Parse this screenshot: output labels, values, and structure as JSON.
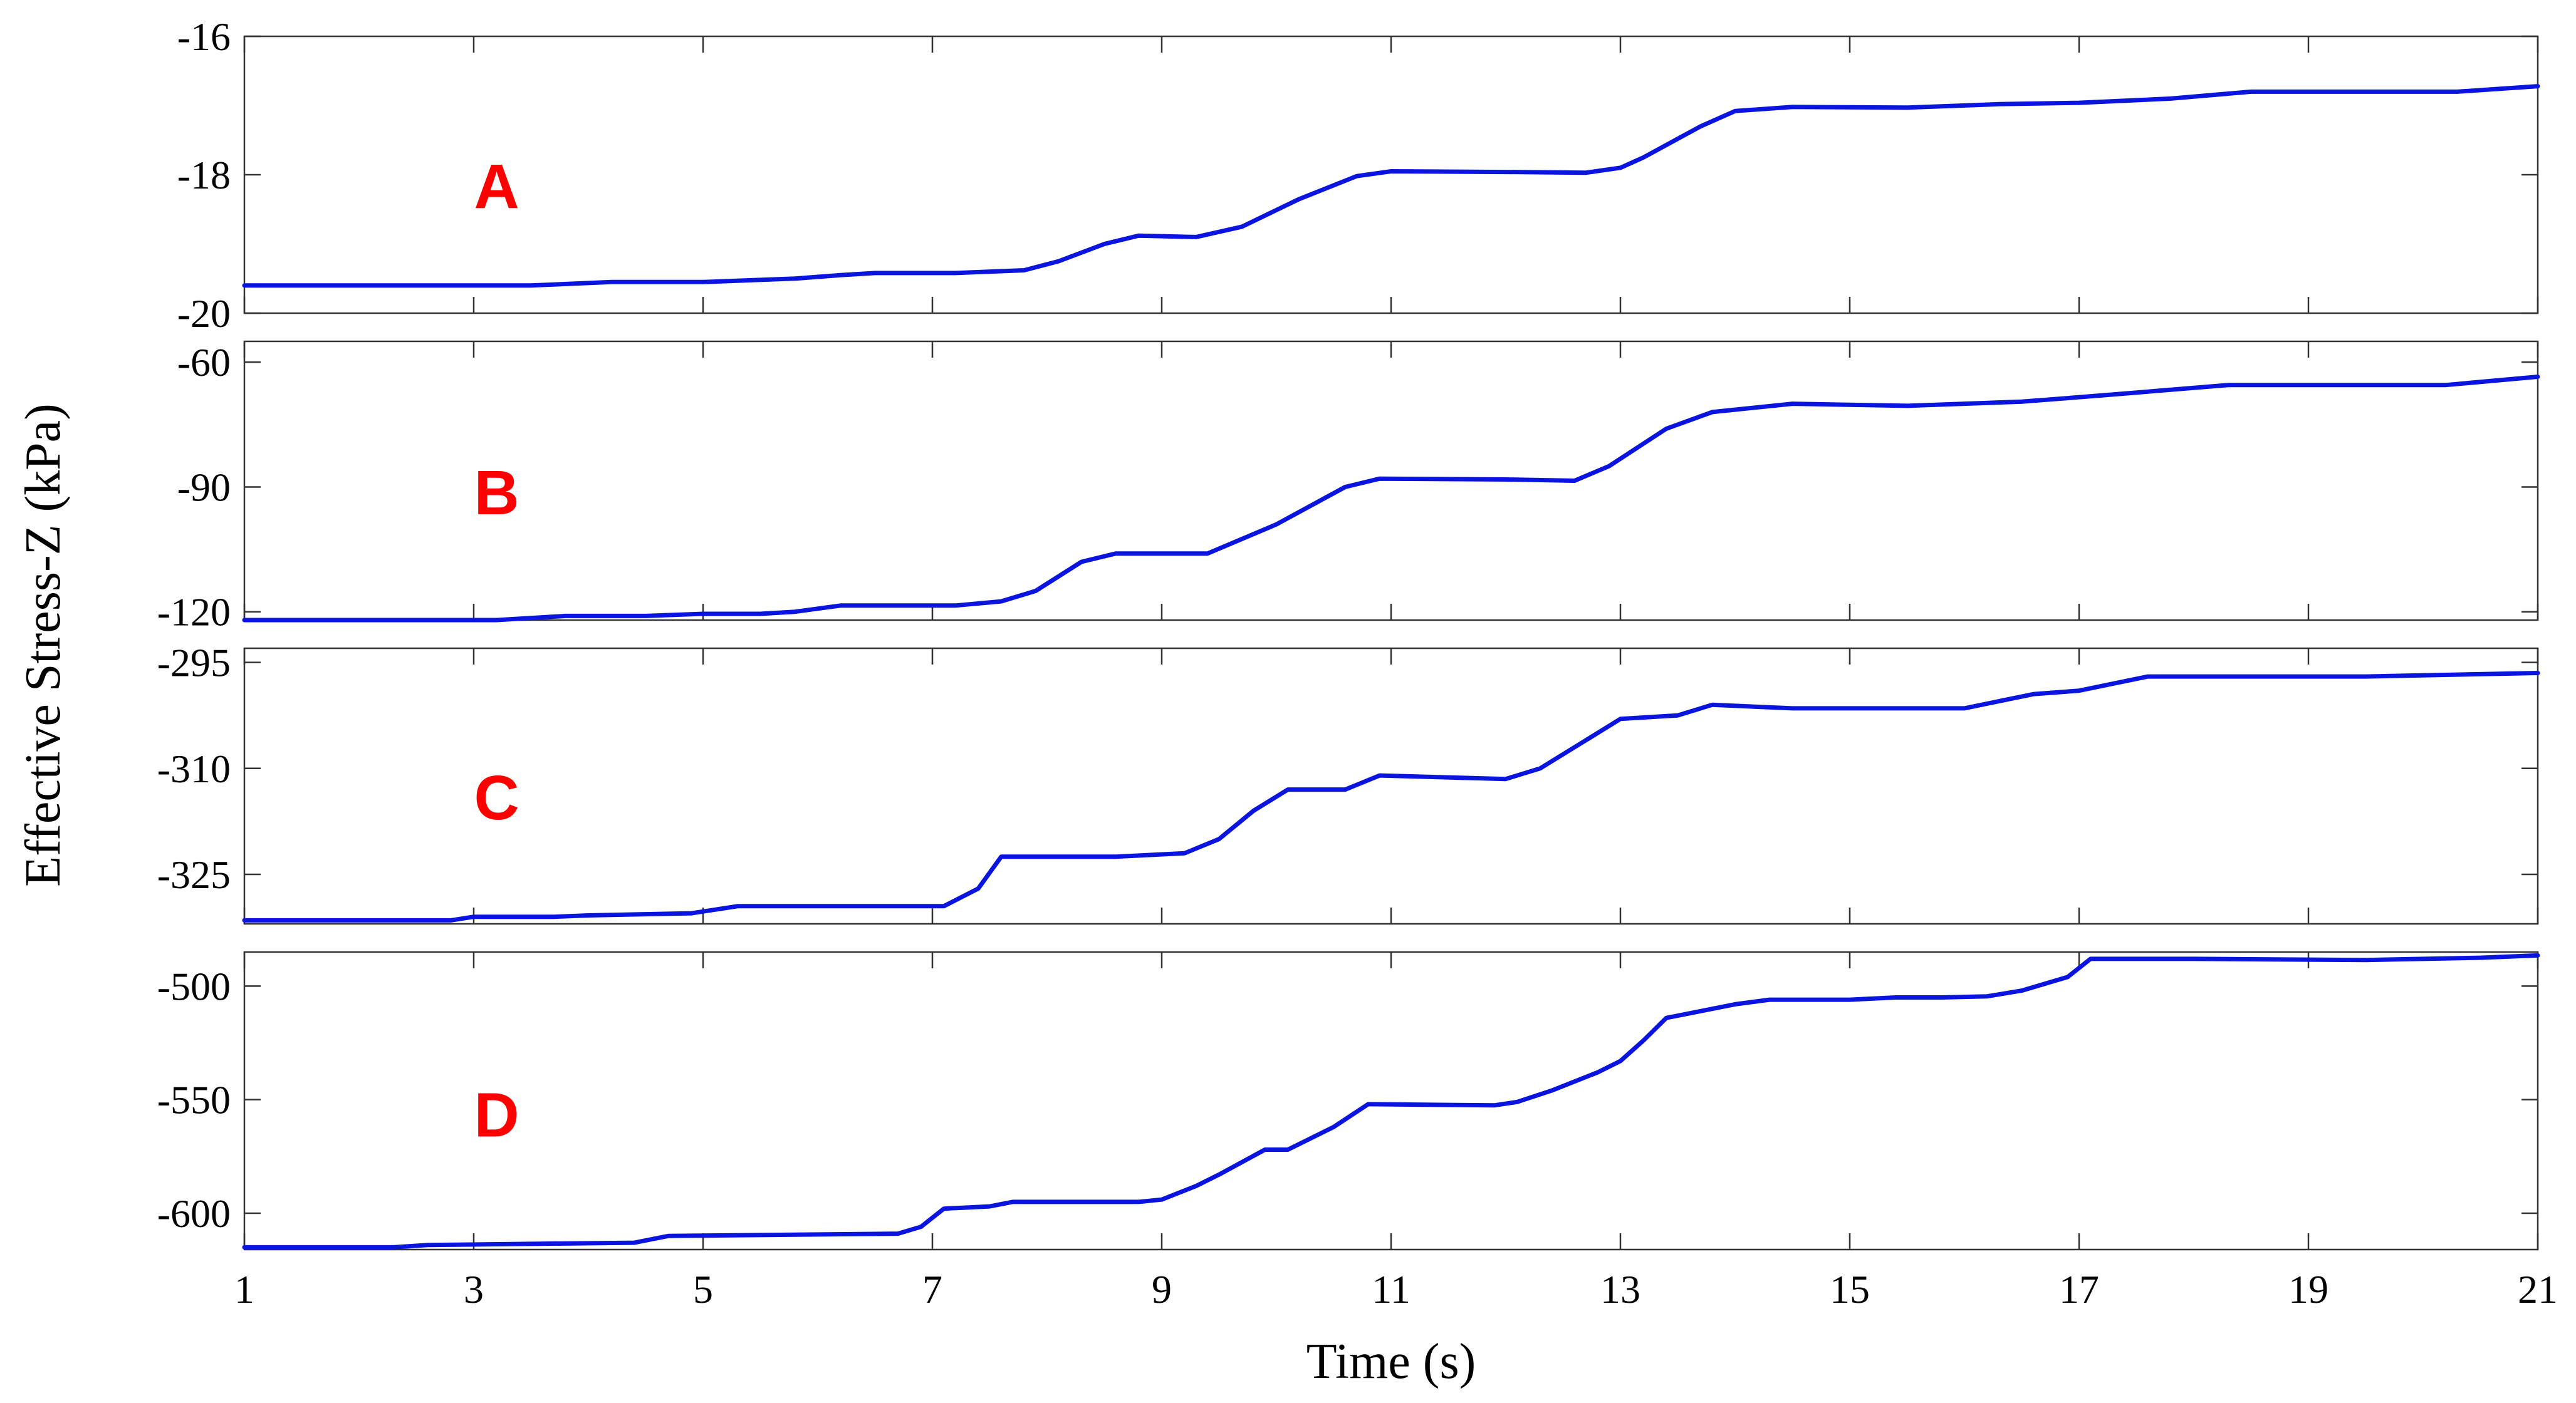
{
  "chart_data": {
    "type": "line",
    "xlabel": "Time (s)",
    "ylabel": "Effective Stress-Z (kPa)",
    "xlim": [
      1,
      21
    ],
    "xticks": [
      1,
      3,
      5,
      7,
      9,
      11,
      13,
      15,
      17,
      19,
      21
    ],
    "colors": {
      "line": "#0a14e0",
      "label": "#ff0000"
    },
    "panels": [
      {
        "label": "A",
        "ylim": [
          -20,
          -16
        ],
        "yticks": [
          -16,
          -18,
          -20
        ],
        "x": [
          1,
          3.5,
          4.2,
          5,
          5.8,
          6.2,
          6.5,
          7.2,
          7.8,
          8.1,
          8.5,
          8.8,
          9.3,
          9.7,
          10.2,
          10.7,
          11,
          12.0,
          12.7,
          13.0,
          13.2,
          13.7,
          14.0,
          14.5,
          15.5,
          16.3,
          17.0,
          17.8,
          18.5,
          19.5,
          20.3,
          21
        ],
        "y": [
          -19.6,
          -19.6,
          -19.55,
          -19.55,
          -19.5,
          -19.45,
          -19.42,
          -19.42,
          -19.38,
          -19.25,
          -19.0,
          -18.88,
          -18.9,
          -18.75,
          -18.35,
          -18.02,
          -17.95,
          -17.96,
          -17.97,
          -17.9,
          -17.75,
          -17.3,
          -17.08,
          -17.02,
          -17.03,
          -16.98,
          -16.96,
          -16.9,
          -16.8,
          -16.8,
          -16.8,
          -16.72
        ]
      },
      {
        "label": "B",
        "ylim": [
          -122,
          -55
        ],
        "yticks": [
          -60,
          -90,
          -120
        ],
        "x": [
          1,
          3.2,
          3.8,
          4.5,
          5,
          5.5,
          5.8,
          6.2,
          7.2,
          7.6,
          7.9,
          8.3,
          8.6,
          9.4,
          10.0,
          10.6,
          10.9,
          12.0,
          12.6,
          12.9,
          13.4,
          13.8,
          14.5,
          15.5,
          16.5,
          17.2,
          18.3,
          19.5,
          20.2,
          21
        ],
        "y": [
          -122,
          -122,
          -121,
          -121,
          -120.5,
          -120.5,
          -120,
          -118.5,
          -118.5,
          -117.5,
          -115,
          -108,
          -106,
          -106,
          -99,
          -90,
          -88,
          -88.2,
          -88.5,
          -85,
          -76,
          -72,
          -70,
          -70.5,
          -69.5,
          -68,
          -65.5,
          -65.5,
          -65.5,
          -63.5
        ]
      },
      {
        "label": "C",
        "ylim": [
          -332,
          -293
        ],
        "yticks": [
          -295,
          -310,
          -325
        ],
        "x": [
          1,
          2.8,
          3.0,
          3.7,
          4.0,
          4.9,
          5.3,
          6.0,
          7.1,
          7.4,
          7.6,
          8.6,
          9.2,
          9.5,
          9.8,
          10.1,
          10.6,
          10.9,
          12.0,
          12.3,
          12.7,
          13.0,
          13.5,
          13.8,
          14.5,
          15.5,
          16.0,
          16.3,
          16.6,
          17.0,
          17.6,
          18.0,
          19.5,
          21
        ],
        "y": [
          -331.5,
          -331.5,
          -331,
          -331,
          -330.8,
          -330.5,
          -329.5,
          -329.5,
          -329.5,
          -327,
          -322.5,
          -322.5,
          -322,
          -320,
          -316,
          -313,
          -313,
          -311,
          -311.5,
          -310,
          -306,
          -303,
          -302.5,
          -301,
          -301.5,
          -301.5,
          -301.5,
          -300.5,
          -299.5,
          -299,
          -297,
          -297,
          -297,
          -296.5
        ]
      },
      {
        "label": "D",
        "ylim": [
          -616,
          -485
        ],
        "yticks": [
          -500,
          -550,
          -600
        ],
        "x": [
          1,
          2.3,
          2.6,
          4.4,
          4.7,
          6.7,
          6.9,
          7.1,
          7.5,
          7.7,
          8.8,
          9.0,
          9.3,
          9.5,
          9.9,
          10.1,
          10.5,
          10.8,
          11.9,
          12.1,
          12.4,
          12.8,
          13.0,
          13.2,
          13.4,
          14.0,
          14.3,
          15.0,
          15.4,
          15.8,
          16.2,
          16.5,
          16.9,
          17.1,
          18.0,
          19.5,
          20.5,
          21
        ],
        "y": [
          -615,
          -615,
          -614,
          -613,
          -610,
          -609,
          -606,
          -598,
          -597,
          -595,
          -595,
          -594,
          -588,
          -583,
          -572,
          -572,
          -562,
          -552,
          -552.5,
          -551,
          -546,
          -538,
          -533,
          -524,
          -514,
          -508,
          -506,
          -506,
          -505,
          -505,
          -504.5,
          -502,
          -496,
          -488,
          -488,
          -488.5,
          -487.5,
          -486.5
        ]
      }
    ]
  }
}
